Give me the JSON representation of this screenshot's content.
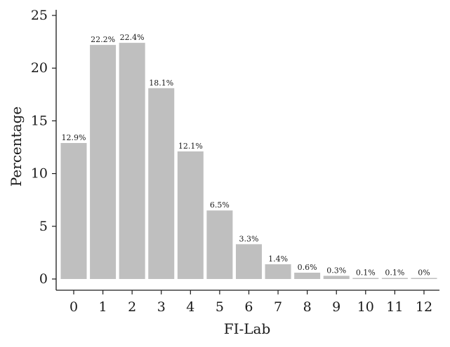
{
  "chart_data": {
    "type": "bar",
    "title": "",
    "xlabel": "FI-Lab",
    "ylabel": "Percentage",
    "categories": [
      "0",
      "1",
      "2",
      "3",
      "4",
      "5",
      "6",
      "7",
      "8",
      "9",
      "10",
      "11",
      "12"
    ],
    "values": [
      12.9,
      22.2,
      22.4,
      18.1,
      12.1,
      6.5,
      3.3,
      1.4,
      0.6,
      0.3,
      0.1,
      0.1,
      0
    ],
    "data_labels": [
      "12.9%",
      "22.2%",
      "22.4%",
      "18.1%",
      "12.1%",
      "6.5%",
      "3.3%",
      "1.4%",
      "0.6%",
      "0.3%",
      "0.1%",
      "0.1%",
      "0%"
    ],
    "yticks": [
      0,
      5,
      10,
      15,
      20,
      25
    ],
    "ylim": [
      0,
      25
    ],
    "grid": false,
    "legend": "none",
    "bar_color": "#bfbfbf",
    "axis_color": "#1a1a1a"
  }
}
